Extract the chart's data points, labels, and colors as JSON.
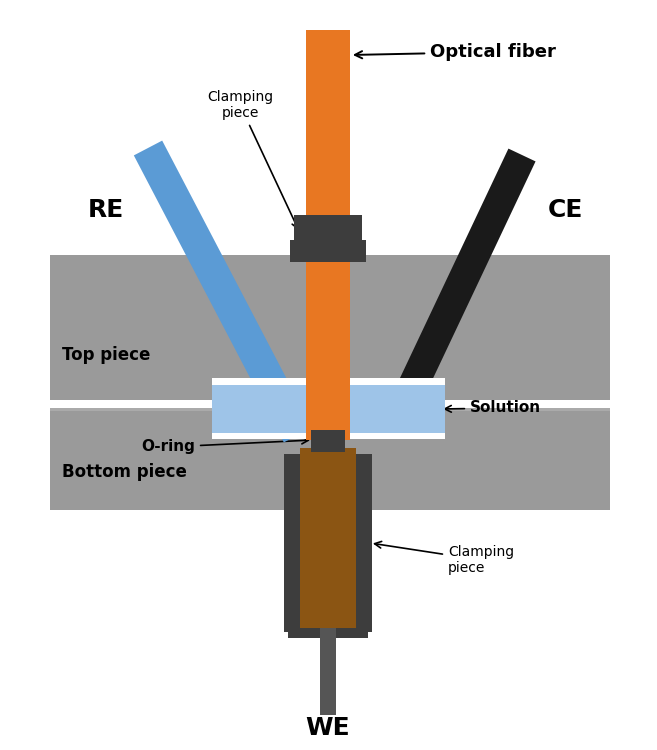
{
  "bg_color": "#ffffff",
  "gray_color": "#9a9a9a",
  "gray_dark": "#3d3d3d",
  "gray_medium": "#555555",
  "orange_color": "#E87722",
  "blue_color": "#5b9bd5",
  "blue_light": "#9ec4e8",
  "brown_color": "#8B5513",
  "black_color": "#1a1a1a",
  "white_color": "#ffffff",
  "yellow_color": "#f0f0b0",
  "shadow_color": "#777777",
  "labels": {
    "optical_fiber": "Optical fiber",
    "clamping_top": "Clamping\npiece",
    "clamping_bottom": "Clamping\npiece",
    "RE": "RE",
    "CE": "CE",
    "WE": "WE",
    "top_piece": "Top piece",
    "bottom_piece": "Bottom piece",
    "o_ring": "O-ring",
    "solution": "Solution"
  },
  "fig_w": 6.57,
  "fig_h": 7.5,
  "dpi": 100
}
